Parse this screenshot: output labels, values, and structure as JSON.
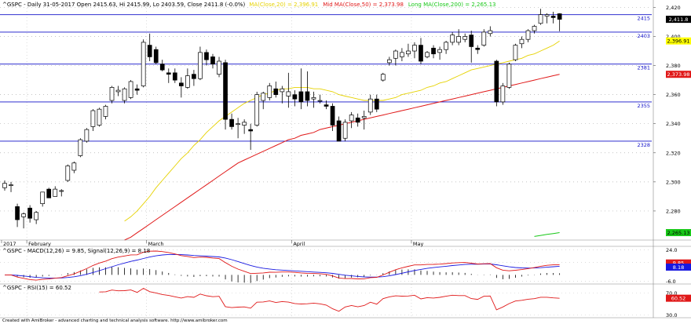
{
  "chart_data": [
    {
      "type": "candlestick",
      "symbol": "^GSPC",
      "header": "^GSPC - Daily 31-05-2017 Open 2415.63, Hi 2415.99, Lo 2403.59, Close 2411.8 (-0.0%)",
      "ma_labels": [
        {
          "text": "MA(Close,20) = 2,396.91",
          "color": "#e6d200"
        },
        {
          "text": "Mid MA(Close,50) = 2,373.98",
          "color": "#e01818"
        },
        {
          "text": "Long MA(Close,200) = 2,265.13",
          "color": "#18c818"
        }
      ],
      "ylim": [
        2260,
        2424
      ],
      "y_ticks": [
        {
          "value": 2420,
          "label": "2,420"
        },
        {
          "value": 2400,
          "label": "2,400"
        },
        {
          "value": 2380,
          "label": "2,380"
        },
        {
          "value": 2360,
          "label": "2,360"
        },
        {
          "value": 2340,
          "label": "2,340"
        },
        {
          "value": 2320,
          "label": "2,320"
        },
        {
          "value": 2300,
          "label": "2,300"
        },
        {
          "value": 2280,
          "label": "2,280"
        }
      ],
      "horizontal_levels": [
        {
          "value": 2415,
          "label": "2415"
        },
        {
          "value": 2403,
          "label": "2403"
        },
        {
          "value": 2381,
          "label": "2381"
        },
        {
          "value": 2355,
          "label": "2355"
        },
        {
          "value": 2328,
          "label": "2328"
        }
      ],
      "price_tags": [
        {
          "value": 2411.8,
          "label": "2,411.8",
          "bg": "#000000",
          "fg": "#ffffff"
        },
        {
          "value": 2396.91,
          "label": "2,396.91",
          "bg": "#ffff00",
          "fg": "#000000"
        },
        {
          "value": 2373.98,
          "label": "2,373.98",
          "bg": "#e01818",
          "fg": "#ffffff"
        },
        {
          "value": 2265.13,
          "label": "2,265.13",
          "bg": "#18c818",
          "fg": "#000000"
        }
      ],
      "x_labels": [
        {
          "index": 0,
          "label": "2017"
        },
        {
          "index": 4,
          "label": "February"
        },
        {
          "index": 23,
          "label": "March"
        },
        {
          "index": 46,
          "label": "April"
        },
        {
          "index": 65,
          "label": "May"
        }
      ],
      "candles": [
        {
          "o": 2296,
          "h": 2301,
          "l": 2294,
          "c": 2299
        },
        {
          "o": 2298,
          "h": 2300,
          "l": 2293,
          "c": 2298
        },
        {
          "o": 2283,
          "h": 2285,
          "l": 2269,
          "c": 2274
        },
        {
          "o": 2276,
          "h": 2279,
          "l": 2268,
          "c": 2278
        },
        {
          "o": 2282,
          "h": 2284,
          "l": 2272,
          "c": 2275
        },
        {
          "o": 2274,
          "h": 2280,
          "l": 2271,
          "c": 2279
        },
        {
          "o": 2285,
          "h": 2292,
          "l": 2283,
          "c": 2293
        },
        {
          "o": 2295,
          "h": 2296,
          "l": 2289,
          "c": 2289
        },
        {
          "o": 2290,
          "h": 2297,
          "l": 2290,
          "c": 2295
        },
        {
          "o": 2294,
          "h": 2295,
          "l": 2290,
          "c": 2294
        },
        {
          "o": 2301,
          "h": 2312,
          "l": 2300,
          "c": 2311
        },
        {
          "o": 2308,
          "h": 2314,
          "l": 2306,
          "c": 2313
        },
        {
          "o": 2318,
          "h": 2330,
          "l": 2317,
          "c": 2329
        },
        {
          "o": 2328,
          "h": 2337,
          "l": 2327,
          "c": 2336
        },
        {
          "o": 2338,
          "h": 2350,
          "l": 2335,
          "c": 2349
        },
        {
          "o": 2339,
          "h": 2351,
          "l": 2338,
          "c": 2350
        },
        {
          "o": 2345,
          "h": 2353,
          "l": 2343,
          "c": 2352
        },
        {
          "o": 2356,
          "h": 2366,
          "l": 2354,
          "c": 2365
        },
        {
          "o": 2362,
          "h": 2366,
          "l": 2359,
          "c": 2363
        },
        {
          "o": 2356,
          "h": 2365,
          "l": 2354,
          "c": 2364
        },
        {
          "o": 2358,
          "h": 2370,
          "l": 2357,
          "c": 2369
        },
        {
          "o": 2364,
          "h": 2367,
          "l": 2360,
          "c": 2363
        },
        {
          "o": 2366,
          "h": 2398,
          "l": 2365,
          "c": 2396
        },
        {
          "o": 2394,
          "h": 2402,
          "l": 2383,
          "c": 2386
        },
        {
          "o": 2391,
          "h": 2393,
          "l": 2381,
          "c": 2382
        },
        {
          "o": 2381,
          "h": 2384,
          "l": 2376,
          "c": 2377
        },
        {
          "o": 2375,
          "h": 2378,
          "l": 2368,
          "c": 2374
        },
        {
          "o": 2375,
          "h": 2378,
          "l": 2368,
          "c": 2370
        },
        {
          "o": 2368,
          "h": 2372,
          "l": 2358,
          "c": 2366
        },
        {
          "o": 2365,
          "h": 2378,
          "l": 2364,
          "c": 2373
        },
        {
          "o": 2374,
          "h": 2377,
          "l": 2366,
          "c": 2371
        },
        {
          "o": 2371,
          "h": 2393,
          "l": 2370,
          "c": 2389
        },
        {
          "o": 2389,
          "h": 2391,
          "l": 2380,
          "c": 2384
        },
        {
          "o": 2386,
          "h": 2388,
          "l": 2378,
          "c": 2381
        },
        {
          "o": 2374,
          "h": 2386,
          "l": 2372,
          "c": 2383
        },
        {
          "o": 2382,
          "h": 2384,
          "l": 2336,
          "c": 2343
        },
        {
          "o": 2343,
          "h": 2347,
          "l": 2336,
          "c": 2338
        },
        {
          "o": 2340,
          "h": 2344,
          "l": 2330,
          "c": 2340
        },
        {
          "o": 2339,
          "h": 2343,
          "l": 2333,
          "c": 2341
        },
        {
          "o": 2336,
          "h": 2340,
          "l": 2322,
          "c": 2335
        },
        {
          "o": 2339,
          "h": 2362,
          "l": 2338,
          "c": 2360
        },
        {
          "o": 2356,
          "h": 2362,
          "l": 2350,
          "c": 2361
        },
        {
          "o": 2358,
          "h": 2368,
          "l": 2356,
          "c": 2366
        },
        {
          "o": 2364,
          "h": 2369,
          "l": 2358,
          "c": 2360
        },
        {
          "o": 2362,
          "h": 2366,
          "l": 2354,
          "c": 2364
        },
        {
          "o": 2359,
          "h": 2375,
          "l": 2351,
          "c": 2362
        },
        {
          "o": 2360,
          "h": 2363,
          "l": 2352,
          "c": 2357
        },
        {
          "o": 2362,
          "h": 2378,
          "l": 2350,
          "c": 2355
        },
        {
          "o": 2362,
          "h": 2376,
          "l": 2352,
          "c": 2356
        },
        {
          "o": 2357,
          "h": 2362,
          "l": 2351,
          "c": 2358
        },
        {
          "o": 2356,
          "h": 2360,
          "l": 2354,
          "c": 2356
        },
        {
          "o": 2353,
          "h": 2356,
          "l": 2350,
          "c": 2352
        },
        {
          "o": 2352,
          "h": 2354,
          "l": 2335,
          "c": 2339
        },
        {
          "o": 2342,
          "h": 2345,
          "l": 2328,
          "c": 2328
        },
        {
          "o": 2330,
          "h": 2343,
          "l": 2328,
          "c": 2341
        },
        {
          "o": 2342,
          "h": 2348,
          "l": 2337,
          "c": 2346
        },
        {
          "o": 2344,
          "h": 2347,
          "l": 2338,
          "c": 2341
        },
        {
          "o": 2344,
          "h": 2349,
          "l": 2336,
          "c": 2345
        },
        {
          "o": 2348,
          "h": 2360,
          "l": 2346,
          "c": 2357
        },
        {
          "o": 2357,
          "h": 2360,
          "l": 2348,
          "c": 2350
        },
        {
          "o": 2370,
          "h": 2375,
          "l": 2369,
          "c": 2374
        },
        {
          "o": 2382,
          "h": 2386,
          "l": 2380,
          "c": 2384
        },
        {
          "o": 2385,
          "h": 2391,
          "l": 2380,
          "c": 2390
        },
        {
          "o": 2386,
          "h": 2392,
          "l": 2383,
          "c": 2389
        },
        {
          "o": 2388,
          "h": 2395,
          "l": 2386,
          "c": 2390
        },
        {
          "o": 2390,
          "h": 2396,
          "l": 2385,
          "c": 2394
        },
        {
          "o": 2394,
          "h": 2399,
          "l": 2381,
          "c": 2383
        },
        {
          "o": 2386,
          "h": 2390,
          "l": 2385,
          "c": 2389
        },
        {
          "o": 2392,
          "h": 2394,
          "l": 2385,
          "c": 2388
        },
        {
          "o": 2389,
          "h": 2393,
          "l": 2384,
          "c": 2391
        },
        {
          "o": 2391,
          "h": 2397,
          "l": 2388,
          "c": 2396
        },
        {
          "o": 2396,
          "h": 2403,
          "l": 2394,
          "c": 2401
        },
        {
          "o": 2396,
          "h": 2405,
          "l": 2394,
          "c": 2400
        },
        {
          "o": 2398,
          "h": 2402,
          "l": 2396,
          "c": 2400
        },
        {
          "o": 2401,
          "h": 2404,
          "l": 2382,
          "c": 2393
        },
        {
          "o": 2392,
          "h": 2394,
          "l": 2388,
          "c": 2391
        },
        {
          "o": 2394,
          "h": 2405,
          "l": 2393,
          "c": 2403
        },
        {
          "o": 2402,
          "h": 2407,
          "l": 2400,
          "c": 2404
        },
        {
          "o": 2383,
          "h": 2384,
          "l": 2352,
          "c": 2355
        },
        {
          "o": 2355,
          "h": 2368,
          "l": 2353,
          "c": 2366
        },
        {
          "o": 2365,
          "h": 2382,
          "l": 2364,
          "c": 2381
        },
        {
          "o": 2384,
          "h": 2395,
          "l": 2383,
          "c": 2394
        },
        {
          "o": 2395,
          "h": 2400,
          "l": 2392,
          "c": 2398
        },
        {
          "o": 2398,
          "h": 2405,
          "l": 2396,
          "c": 2404
        },
        {
          "o": 2404,
          "h": 2408,
          "l": 2402,
          "c": 2407
        },
        {
          "o": 2409,
          "h": 2419,
          "l": 2408,
          "c": 2415
        },
        {
          "o": 2414,
          "h": 2416,
          "l": 2409,
          "c": 2415
        },
        {
          "o": 2414,
          "h": 2417,
          "l": 2409,
          "c": 2413
        },
        {
          "o": 2415.63,
          "h": 2415.99,
          "l": 2403.59,
          "c": 2411.8
        }
      ],
      "ma20": [
        null,
        null,
        null,
        null,
        null,
        null,
        null,
        null,
        null,
        null,
        null,
        null,
        null,
        null,
        null,
        null,
        null,
        null,
        null,
        2273,
        2276,
        2280,
        2285,
        2290,
        2296,
        2301,
        2306,
        2311,
        2316,
        2320,
        2325,
        2329,
        2334,
        2338,
        2342,
        2345,
        2348,
        2351,
        2354,
        2356,
        2358,
        2360,
        2361,
        2363,
        2364,
        2364,
        2365,
        2365,
        2365,
        2364,
        2364,
        2363,
        2362,
        2360,
        2359,
        2358,
        2357,
        2356,
        2356,
        2356,
        2356,
        2357,
        2358,
        2360,
        2361,
        2362,
        2363,
        2365,
        2366,
        2368,
        2369,
        2371,
        2373,
        2375,
        2377,
        2378,
        2379,
        2380,
        2381,
        2382,
        2383,
        2384,
        2385,
        2387,
        2388,
        2390,
        2392,
        2394,
        2396.91
      ],
      "ma50": [
        null,
        null,
        null,
        null,
        null,
        null,
        null,
        null,
        null,
        null,
        null,
        null,
        null,
        null,
        null,
        null,
        null,
        null,
        null,
        2260,
        2262,
        2265,
        2268,
        2271,
        2274,
        2277,
        2280,
        2283,
        2286,
        2289,
        2292,
        2295,
        2298,
        2301,
        2304,
        2307,
        2310,
        2313,
        2315,
        2317,
        2319,
        2321,
        2323,
        2325,
        2327,
        2329,
        2330,
        2332,
        2333,
        2334,
        2336,
        2337,
        2338,
        2339,
        2340,
        2341,
        2342,
        2343,
        2344,
        2345,
        2346,
        2347,
        2348,
        2349,
        2350,
        2351,
        2352,
        2353,
        2354,
        2355,
        2356,
        2357,
        2358,
        2359,
        2360,
        2361,
        2362,
        2363,
        2364,
        2365,
        2366,
        2367,
        2368,
        2369,
        2370,
        2371,
        2372,
        2373,
        2373.98
      ],
      "ma200_tail": [
        2262.5,
        2263.2,
        2263.9,
        2264.5,
        2265.13
      ]
    },
    {
      "type": "line",
      "title": "^GSPC - MACD(12,26) = 9.85, Signal(12,26,9) = 8.18",
      "series": [
        {
          "name": "MACD(12,26)",
          "color": "#e01818"
        },
        {
          "name": "Signal(12,26,9)",
          "color": "#1818e0"
        }
      ],
      "ylim": [
        -8,
        26
      ],
      "y_ticks": [
        {
          "value": 24.0,
          "label": "24.0"
        },
        {
          "value": 12.0,
          "label": "12.0"
        },
        {
          "value": -6.0,
          "label": "-6.0"
        }
      ],
      "price_tags": [
        {
          "value": 11.5,
          "label": "9.85",
          "bg": "#e01818",
          "fg": "#ffffff"
        },
        {
          "value": 7.5,
          "label": "8.18",
          "bg": "#1818e0",
          "fg": "#ffffff"
        }
      ]
    },
    {
      "type": "line",
      "title": "^GSPC - RSI(15) = 60.52",
      "series": [
        {
          "name": "RSI(15)",
          "color": "#e01818"
        }
      ],
      "ylim": [
        25,
        85
      ],
      "y_ticks": [
        {
          "value": 70.0,
          "label": "70.0"
        },
        {
          "value": 30.0,
          "label": "30.0"
        }
      ],
      "price_tags": [
        {
          "value": 60.52,
          "label": "60.52",
          "bg": "#e01818",
          "fg": "#ffffff"
        }
      ]
    }
  ],
  "footer": "Created with AmiBroker - advanced charting and technical analysis software. http://www.amibroker.com"
}
